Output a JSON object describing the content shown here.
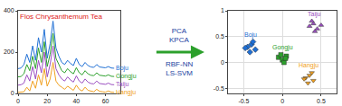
{
  "chart_data": [
    {
      "type": "line",
      "annotations": [
        "Flos Chrysanthemum Tea"
      ],
      "x": [
        0,
        2,
        4,
        6,
        8,
        10,
        12,
        14,
        16,
        18,
        20,
        22,
        24,
        26,
        28,
        30,
        32,
        34,
        36,
        38,
        40,
        42,
        44,
        46,
        48,
        50,
        52,
        54,
        56,
        58,
        60,
        62,
        64,
        66
      ],
      "series": [
        {
          "name": "Boju",
          "color": "#1f6fd4",
          "values": [
            120,
            123,
            140,
            190,
            150,
            230,
            160,
            270,
            200,
            310,
            170,
            240,
            350,
            220,
            180,
            150,
            140,
            160,
            145,
            135,
            170,
            140,
            130,
            150,
            135,
            128,
            126,
            140,
            128,
            125,
            124,
            130,
            123,
            122
          ]
        },
        {
          "name": "Gongju",
          "color": "#2ca02c",
          "values": [
            80,
            82,
            95,
            140,
            110,
            180,
            120,
            220,
            150,
            250,
            130,
            190,
            290,
            170,
            140,
            110,
            100,
            120,
            105,
            95,
            125,
            100,
            90,
            110,
            95,
            88,
            86,
            100,
            88,
            85,
            84,
            90,
            83,
            82
          ]
        },
        {
          "name": "Taiju",
          "color": "#9b4fc0",
          "values": [
            40,
            42,
            50,
            90,
            60,
            130,
            70,
            160,
            100,
            200,
            80,
            140,
            230,
            120,
            90,
            70,
            60,
            80,
            65,
            55,
            85,
            60,
            50,
            70,
            55,
            48,
            46,
            60,
            48,
            45,
            44,
            50,
            43,
            42
          ]
        },
        {
          "name": "Hangju",
          "color": "#f0a020",
          "values": [
            5,
            6,
            8,
            30,
            12,
            60,
            25,
            90,
            40,
            120,
            35,
            70,
            150,
            60,
            40,
            30,
            20,
            35,
            25,
            15,
            40,
            20,
            12,
            30,
            15,
            10,
            8,
            20,
            10,
            8,
            6,
            12,
            6,
            5
          ]
        }
      ],
      "xlim": [
        0,
        70
      ],
      "xticks": [
        0,
        20,
        40,
        60
      ],
      "ylim": [
        0,
        400
      ],
      "yticks": [
        0,
        200,
        400
      ],
      "grid": false
    },
    {
      "type": "scatter",
      "series": [
        {
          "name": "Boju",
          "color": "#1f6fd4",
          "marker": "diamond",
          "x": [
            -0.45,
            -0.4,
            -0.35,
            -0.42,
            -0.38,
            -0.48
          ],
          "values": [
            0.3,
            0.35,
            0.25,
            0.2,
            0.4,
            0.28
          ]
        },
        {
          "name": "Gongju",
          "color": "#2ca02c",
          "marker": "square",
          "x": [
            -0.05,
            0.0,
            0.05,
            0.02,
            -0.02,
            0.04
          ],
          "values": [
            0.1,
            0.05,
            0.12,
            0.0,
            0.15,
            0.08
          ]
        },
        {
          "name": "Taiju",
          "color": "#9b4fc0",
          "marker": "triangle-up",
          "x": [
            0.35,
            0.4,
            0.45,
            0.38,
            0.42,
            0.5
          ],
          "values": [
            0.7,
            0.75,
            0.65,
            0.8,
            0.6,
            0.72
          ]
        },
        {
          "name": "Hangju",
          "color": "#f0a020",
          "marker": "triangle-down",
          "x": [
            0.3,
            0.35,
            0.4,
            0.33,
            0.38,
            0.28
          ],
          "values": [
            -0.3,
            -0.25,
            -0.35,
            -0.4,
            -0.2,
            -0.32
          ]
        }
      ],
      "xlim": [
        -0.7,
        0.7
      ],
      "xticks": [
        -0.5,
        0,
        0.5
      ],
      "ylim": [
        -0.6,
        1
      ],
      "yticks": [
        -0.5,
        0,
        0.5,
        1
      ],
      "grid": true
    }
  ],
  "arrow": {
    "above": [
      "PCA",
      "KPCA"
    ],
    "below": [
      "RBF-NN",
      "LS-SVM"
    ]
  }
}
